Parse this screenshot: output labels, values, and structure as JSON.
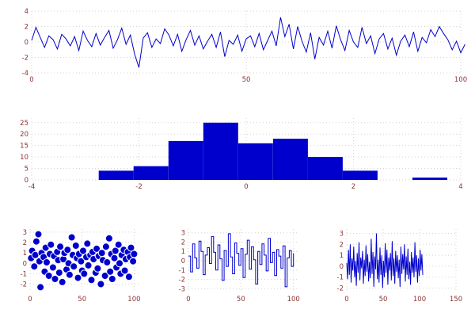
{
  "figure": {
    "background": "#ffffff"
  },
  "colors": {
    "accent": "#0000cd",
    "grid": "#d4d4d4",
    "tick_label": "#8b3232",
    "marker_edge": "#ffffff",
    "background": "#ffffff"
  },
  "chart_data": [
    {
      "id": "timeseries",
      "type": "line",
      "title": "",
      "x_start": 0,
      "x_step": 1,
      "values": [
        0.2,
        1.9,
        0.6,
        -0.7,
        0.8,
        0.3,
        -0.9,
        1.0,
        0.4,
        -0.5,
        0.7,
        -1.1,
        1.4,
        0.2,
        -0.6,
        1.1,
        -0.4,
        0.6,
        1.5,
        -0.8,
        0.3,
        1.8,
        -0.3,
        0.9,
        -1.6,
        -3.3,
        0.5,
        1.2,
        -0.7,
        0.4,
        -0.2,
        1.7,
        0.9,
        -0.5,
        1.0,
        -1.2,
        0.3,
        1.5,
        -0.4,
        0.8,
        -0.9,
        0.1,
        1.0,
        -0.7,
        1.3,
        -1.9,
        0.2,
        -0.3,
        0.9,
        -1.2,
        0.4,
        0.8,
        -0.6,
        1.1,
        -1.0,
        0.2,
        1.4,
        -0.5,
        3.2,
        0.7,
        2.3,
        -0.9,
        2.0,
        0.1,
        -1.3,
        1.2,
        -2.2,
        0.6,
        -0.4,
        1.4,
        -0.8,
        2.1,
        0.3,
        -1.1,
        1.5,
        0.0,
        -0.7,
        1.9,
        -0.2,
        0.8,
        -1.5,
        0.4,
        1.1,
        -0.9,
        0.5,
        -1.7,
        0.1,
        0.9,
        -0.6,
        1.3,
        -1.2,
        0.6,
        -0.1,
        1.6,
        0.7,
        2.0,
        1.1,
        0.3,
        -1.0,
        0.1,
        -1.4,
        -0.3
      ],
      "xlim": [
        0,
        100
      ],
      "ylim": [
        -4,
        4
      ],
      "xticks": [
        0,
        50,
        100
      ],
      "yticks": [
        -4,
        -2,
        0,
        2,
        4
      ],
      "grid": true
    },
    {
      "id": "histogram",
      "type": "bar",
      "title": "",
      "bin_edges": [
        -2.75,
        -2.1,
        -1.45,
        -0.8,
        -0.15,
        0.5,
        1.15,
        1.8,
        2.45,
        3.1,
        3.75
      ],
      "counts": [
        4,
        6,
        17,
        25,
        16,
        18,
        10,
        4,
        0,
        1
      ],
      "xlim": [
        -4,
        4
      ],
      "ylim": [
        0,
        27
      ],
      "xticks": [
        -4,
        -2,
        0,
        2,
        4
      ],
      "yticks": [
        0,
        5,
        10,
        15,
        20,
        25
      ],
      "grid": true
    },
    {
      "id": "scatter",
      "type": "scatter",
      "title": "",
      "x": [
        1,
        2,
        4,
        5,
        6,
        8,
        9,
        10,
        11,
        13,
        14,
        15,
        16,
        18,
        19,
        20,
        22,
        23,
        24,
        26,
        27,
        28,
        29,
        31,
        32,
        33,
        35,
        36,
        37,
        38,
        40,
        41,
        42,
        44,
        45,
        46,
        47,
        49,
        50,
        51,
        52,
        54,
        55,
        56,
        58,
        59,
        60,
        61,
        63,
        64,
        65,
        66,
        68,
        69,
        70,
        72,
        73,
        74,
        76,
        77,
        78,
        79,
        81,
        82,
        83,
        85,
        86,
        87,
        88,
        90,
        91,
        92,
        94,
        95,
        96,
        97,
        99,
        100
      ],
      "y": [
        0.5,
        1.2,
        -0.3,
        0.8,
        2.1,
        2.8,
        0.2,
        -2.3,
        1.0,
        0.6,
        -0.8,
        1.5,
        0.1,
        -1.2,
        0.9,
        1.8,
        -0.4,
        0.7,
        -1.5,
        1.1,
        0.3,
        -0.9,
        1.6,
        -1.8,
        0.4,
        1.0,
        -0.6,
        1.3,
        0.0,
        -1.1,
        2.5,
        0.8,
        -0.3,
        1.7,
        0.5,
        -1.4,
        0.9,
        0.2,
        -0.7,
        1.2,
        -1.0,
        0.6,
        1.9,
        -0.2,
        0.8,
        -1.6,
        1.1,
        0.4,
        -0.9,
        1.4,
        -0.5,
        0.7,
        -2.0,
        1.0,
        0.3,
        -1.2,
        1.6,
        0.1,
        2.4,
        -0.8,
        0.9,
        -1.5,
        0.5,
        1.2,
        -0.4,
        1.8,
        0.0,
        -1.0,
        0.8,
        1.3,
        -0.7,
        0.4,
        1.1,
        -1.3,
        0.6,
        1.5,
        0.2,
        0.9
      ],
      "marker_radius": 4.5,
      "xlim": [
        0,
        105
      ],
      "ylim": [
        -2.8,
        3.3
      ],
      "xticks": [
        0,
        50,
        100
      ],
      "yticks": [
        -2,
        -1,
        0,
        1,
        2,
        3
      ],
      "grid": true
    },
    {
      "id": "step",
      "type": "line",
      "step": true,
      "title": "",
      "x_start": 0,
      "x_step": 2,
      "values": [
        0.5,
        -1.2,
        1.8,
        0.3,
        -0.8,
        2.1,
        1.0,
        -1.5,
        0.6,
        1.4,
        -0.3,
        2.6,
        0.9,
        -1.0,
        1.7,
        0.2,
        -2.1,
        1.1,
        -0.6,
        2.9,
        0.4,
        -1.4,
        1.9,
        0.8,
        -0.5,
        1.3,
        -1.8,
        0.7,
        2.2,
        -0.9,
        1.5,
        0.1,
        -2.5,
        1.0,
        -0.4,
        1.8,
        0.6,
        -1.1,
        2.4,
        -0.2,
        0.9,
        -1.6,
        1.2,
        0.5,
        -0.8,
        1.6,
        -2.8,
        0.3,
        1.1,
        -0.6,
        0.8
      ],
      "xlim": [
        0,
        104
      ],
      "ylim": [
        -3.4,
        3.4
      ],
      "xticks": [
        0,
        50,
        100
      ],
      "yticks": [
        -3,
        -2,
        -1,
        0,
        1,
        2,
        3
      ],
      "grid": true
    },
    {
      "id": "spikes",
      "type": "line",
      "title": "",
      "x_start": 0,
      "x_step": 1.2,
      "values": [
        0.3,
        -1.2,
        1.5,
        -0.8,
        2.0,
        -1.5,
        0.7,
        -0.4,
        1.8,
        -1.0,
        0.5,
        -1.8,
        1.2,
        -0.6,
        2.2,
        -1.3,
        0.8,
        -0.2,
        1.4,
        -1.6,
        0.6,
        -0.9,
        1.9,
        -0.5,
        1.1,
        -1.4,
        0.4,
        -1.1,
        2.5,
        -0.7,
        1.3,
        -1.9,
        0.9,
        -0.3,
        3.0,
        -1.2,
        0.6,
        -1.5,
        1.7,
        -0.8,
        1.0,
        -2.0,
        0.5,
        -1.0,
        2.1,
        -0.6,
        1.5,
        -1.7,
        0.8,
        -0.4,
        1.2,
        -1.3,
        2.3,
        -0.9,
        0.7,
        -1.6,
        1.4,
        -0.5,
        1.0,
        -1.1,
        0.6,
        -1.9,
        1.8,
        -0.7,
        1.1,
        -0.3,
        2.0,
        -1.4,
        0.9,
        -0.8,
        1.6,
        -1.2,
        0.4,
        -1.7,
        1.3,
        -0.6,
        0.8,
        -1.0,
        2.2,
        -0.5,
        1.0,
        -1.5,
        0.7,
        -0.9,
        1.5,
        -0.4,
        1.1,
        -0.8
      ],
      "xlim": [
        0,
        150
      ],
      "ylim": [
        -2.4,
        3.4
      ],
      "xticks": [
        0,
        50,
        100,
        150
      ],
      "yticks": [
        -2,
        -1,
        0,
        1,
        2,
        3
      ],
      "grid": true
    }
  ]
}
